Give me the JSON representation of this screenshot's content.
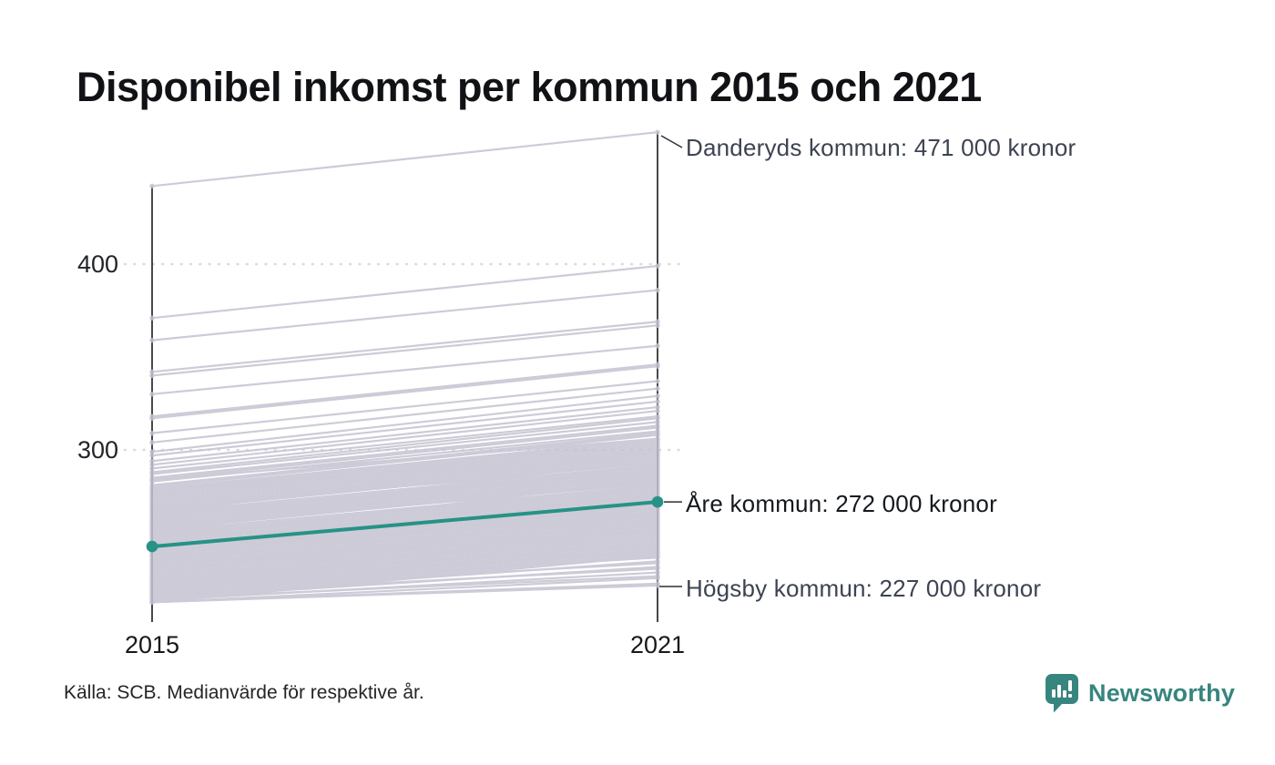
{
  "title": "Disponibel inkomst per kommun 2015 och 2021",
  "source_note": "Källa: SCB. Medianvärde för respektive år.",
  "logo": {
    "brand": "Newsworthy"
  },
  "colors": {
    "highlight": "#279286",
    "background_line": "#c5c2d1",
    "axis": "#1a1a1a",
    "grid": "#dcdadf",
    "leader": "#2b2e35",
    "logo_teal": "#37857f"
  },
  "chart_data": {
    "type": "line",
    "subtype": "slope-chart",
    "title": "Disponibel inkomst per kommun 2015 och 2021",
    "x_categories": [
      "2015",
      "2021"
    ],
    "y_ticks": [
      {
        "label": "400",
        "value": 400
      },
      {
        "label": "300",
        "value": 300
      }
    ],
    "y_unit_note": "tusental kronor (labels shown as 000 kronor)",
    "grid": true,
    "legend": "none",
    "highlight_series": {
      "name": "Åre kommun",
      "x": [
        2015,
        2021
      ],
      "values": [
        248,
        272
      ]
    },
    "annotations": [
      {
        "series": "Danderyds kommun",
        "label": "Danderyds kommun: 471 000 kronor",
        "value_2021": 471,
        "value_2015_est": 442
      },
      {
        "series": "Åre kommun",
        "label": "Åre kommun: 272 000 kronor",
        "value_2021": 272,
        "value_2015_est": 248,
        "highlighted": true
      },
      {
        "series": "Högsby kommun",
        "label": "Högsby kommun: 227 000 kronor",
        "value_2021": 227,
        "value_2015_est": 218
      }
    ],
    "background_series_note": "unlabeled municipality lines, values in thousand kronor [2015, 2021], estimated from pixels",
    "background_series": [
      [
        442,
        471
      ],
      [
        371,
        399
      ],
      [
        359,
        386
      ],
      [
        342,
        369
      ],
      [
        340,
        367
      ],
      [
        330,
        356
      ],
      [
        318,
        346
      ],
      [
        317,
        345
      ],
      [
        309,
        337
      ],
      [
        304,
        333
      ],
      [
        299,
        329
      ],
      [
        297,
        326
      ],
      [
        294,
        323
      ],
      [
        292,
        321
      ],
      [
        290,
        318
      ],
      [
        288,
        317
      ],
      [
        287,
        315
      ],
      [
        285,
        313
      ],
      [
        284,
        312
      ],
      [
        283,
        310
      ],
      [
        281,
        309
      ],
      [
        280,
        308
      ],
      [
        279,
        306
      ],
      [
        278,
        305
      ],
      [
        277,
        304
      ],
      [
        276,
        303
      ],
      [
        275,
        302
      ],
      [
        274,
        301
      ],
      [
        273,
        300
      ],
      [
        272,
        299
      ],
      [
        271,
        298
      ],
      [
        270,
        297
      ],
      [
        269,
        296
      ],
      [
        268,
        295
      ],
      [
        268,
        293
      ],
      [
        267,
        294
      ],
      [
        266,
        292
      ],
      [
        265,
        291
      ],
      [
        264,
        290
      ],
      [
        263,
        289
      ],
      [
        262,
        288
      ],
      [
        261,
        287
      ],
      [
        260,
        286
      ],
      [
        259,
        285
      ],
      [
        258,
        284
      ],
      [
        258,
        282
      ],
      [
        257,
        283
      ],
      [
        256,
        281
      ],
      [
        255,
        280
      ],
      [
        254,
        279
      ],
      [
        253,
        278
      ],
      [
        252,
        277
      ],
      [
        251,
        276
      ],
      [
        250,
        275
      ],
      [
        249,
        274
      ],
      [
        248,
        273
      ],
      [
        247,
        272
      ],
      [
        246,
        271
      ],
      [
        245,
        270
      ],
      [
        244,
        269
      ],
      [
        243,
        268
      ],
      [
        242,
        267
      ],
      [
        241,
        266
      ],
      [
        240,
        265
      ],
      [
        239,
        264
      ],
      [
        238,
        263
      ],
      [
        237,
        262
      ],
      [
        236,
        261
      ],
      [
        235,
        260
      ],
      [
        234,
        259
      ],
      [
        233,
        258
      ],
      [
        232,
        257
      ],
      [
        231,
        256
      ],
      [
        230,
        255
      ],
      [
        229,
        254
      ],
      [
        228,
        253
      ],
      [
        227,
        252
      ],
      [
        226,
        251
      ],
      [
        225,
        250
      ],
      [
        224,
        249
      ],
      [
        223,
        248
      ],
      [
        222,
        247
      ],
      [
        221,
        246
      ],
      [
        220,
        245
      ],
      [
        219,
        244
      ],
      [
        218,
        243
      ],
      [
        221,
        240
      ],
      [
        220,
        237
      ],
      [
        219,
        234
      ],
      [
        218,
        231
      ],
      [
        218,
        228
      ],
      [
        220,
        232
      ],
      [
        222,
        236
      ],
      [
        224,
        239
      ],
      [
        226,
        242
      ],
      [
        228,
        245
      ],
      [
        218,
        227
      ],
      [
        252,
        284
      ],
      [
        247,
        280
      ],
      [
        243,
        276
      ],
      [
        239,
        271
      ],
      [
        261,
        292
      ],
      [
        266,
        299
      ],
      [
        256,
        289
      ],
      [
        234,
        266
      ],
      [
        230,
        262
      ],
      [
        226,
        258
      ],
      [
        284,
        306
      ],
      [
        278,
        299
      ],
      [
        270,
        291
      ],
      [
        262,
        283
      ],
      [
        254,
        274
      ],
      [
        246,
        266
      ],
      [
        238,
        257
      ],
      [
        231,
        249
      ]
    ]
  }
}
